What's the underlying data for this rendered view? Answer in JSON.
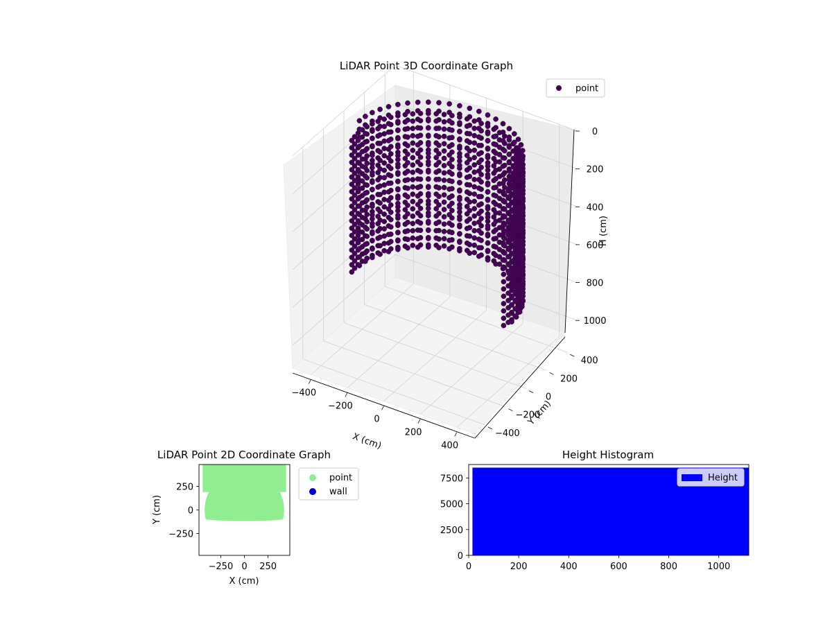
{
  "chart_data": [
    {
      "id": "lidar3d",
      "type": "scatter",
      "title": "LiDAR Point 3D Coordinate Graph",
      "xlabel": "X (cm)",
      "ylabel": "Y (cm)",
      "zlabel": "H (cm)",
      "x_ticks": [
        -400,
        -200,
        0,
        200,
        400
      ],
      "y_ticks": [
        -400,
        -200,
        0,
        200,
        400
      ],
      "z_ticks": [
        0,
        200,
        400,
        600,
        800,
        1000
      ],
      "xlim": [
        -500,
        500
      ],
      "ylim": [
        -500,
        500
      ],
      "zlim": [
        0,
        1120
      ],
      "z_inverted": true,
      "grid": true,
      "legend": {
        "placement": "upper-right",
        "entries": [
          {
            "name": "point",
            "color": "#440154"
          }
        ]
      },
      "series": [
        {
          "name": "point",
          "color": "#440154",
          "shape": "cylinder-wall",
          "radius_cm": 420,
          "y_min_cm": -90,
          "height_range": [
            0,
            1120
          ],
          "ring_count": 18
        }
      ]
    },
    {
      "id": "lidar2d",
      "type": "scatter",
      "title": "LiDAR Point 2D Coordinate Graph",
      "xlabel": "X (cm)",
      "ylabel": "Y (cm)",
      "x_ticks": [
        -250,
        0,
        250
      ],
      "y_ticks": [
        -250,
        0,
        250
      ],
      "xlim": [
        -480,
        480
      ],
      "ylim": [
        -480,
        480
      ],
      "grid": false,
      "legend": {
        "placement": "outside-right",
        "entries": [
          {
            "name": "point",
            "color": "#90ee90"
          },
          {
            "name": "wall",
            "color": "#0000cc"
          }
        ]
      },
      "series": [
        {
          "name": "point",
          "color": "#90ee90",
          "shape": "filled-half-disc",
          "radius_cm": 420,
          "center": [
            0,
            0
          ],
          "y_min_cm": -100
        },
        {
          "name": "wall",
          "color": "#0000cc",
          "points": []
        }
      ]
    },
    {
      "id": "histogram",
      "type": "bar",
      "title": "Height Histogram",
      "x_ticks": [
        0,
        200,
        400,
        600,
        800,
        1000
      ],
      "y_ticks": [
        0,
        2500,
        5000,
        7500
      ],
      "xlim": [
        0,
        1120
      ],
      "ylim": [
        0,
        8800
      ],
      "legend": {
        "placement": "upper-right",
        "entries": [
          {
            "name": "Height",
            "color": "#0000ff"
          }
        ]
      },
      "series": [
        {
          "name": "Height",
          "color": "#0000ff",
          "bins": [
            {
              "x0": 15,
              "x1": 1120,
              "count": 8500
            }
          ]
        }
      ]
    }
  ]
}
